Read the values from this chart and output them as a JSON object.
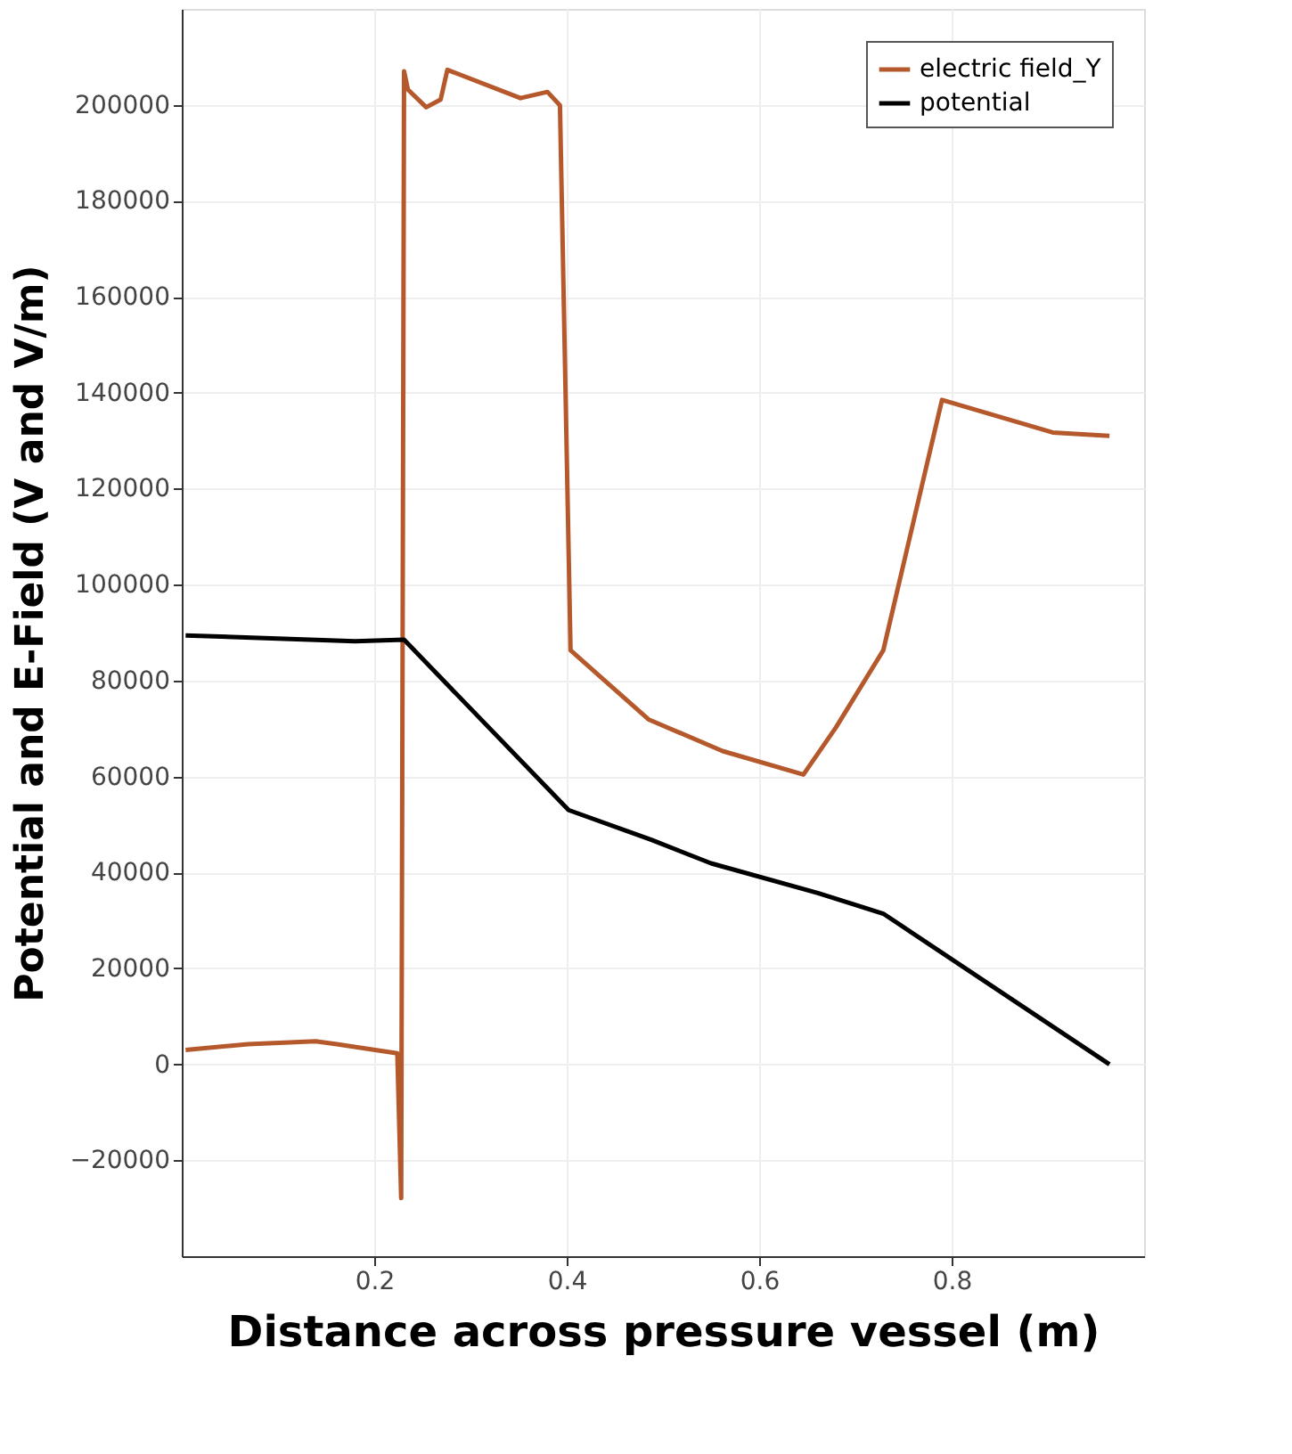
{
  "chart_data": {
    "type": "line",
    "xlabel": "Distance  across pressure vessel (m)",
    "ylabel": "Potential and E-Field (V and V/m)",
    "xlim": [
      0,
      1.0
    ],
    "ylim": [
      -40000,
      220000
    ],
    "xticks": [
      0.2,
      0.4,
      0.6,
      0.8
    ],
    "yticks": [
      -20000,
      0,
      20000,
      40000,
      60000,
      80000,
      100000,
      120000,
      140000,
      160000,
      180000,
      200000
    ],
    "grid": true,
    "legend": "top right",
    "line_style": "solid",
    "marker": "none",
    "series": [
      {
        "name": "electric field_Y",
        "color": "#b5592c",
        "x": [
          0.004,
          0.069,
          0.139,
          0.161,
          0.224,
          0.228,
          0.231,
          0.235,
          0.254,
          0.269,
          0.276,
          0.352,
          0.38,
          0.393,
          0.404,
          0.485,
          0.562,
          0.646,
          0.68,
          0.729,
          0.79,
          0.905,
          0.964
        ],
        "values": [
          3000,
          4200,
          4800,
          4200,
          2300,
          -27900,
          207000,
          203200,
          199500,
          201100,
          207300,
          201400,
          202700,
          199900,
          86300,
          71900,
          65300,
          60400,
          70300,
          86300,
          138500,
          131700,
          131000
        ]
      },
      {
        "name": "potential",
        "color": "#000000",
        "x": [
          0.004,
          0.18,
          0.231,
          0.402,
          0.488,
          0.55,
          0.661,
          0.729,
          0.964
        ],
        "values": [
          89400,
          88200,
          88500,
          53000,
          46800,
          41900,
          35700,
          31400,
          0
        ]
      }
    ]
  }
}
